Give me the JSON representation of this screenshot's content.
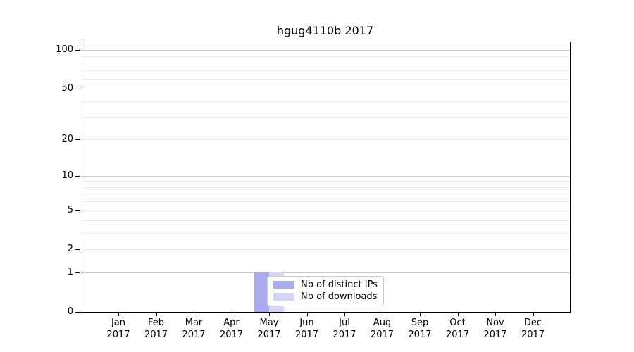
{
  "chart_data": {
    "type": "bar",
    "title": "hgug4110b 2017",
    "categories": [
      "Jan 2017",
      "Feb 2017",
      "Mar 2017",
      "Apr 2017",
      "May 2017",
      "Jun 2017",
      "Jul 2017",
      "Aug 2017",
      "Sep 2017",
      "Oct 2017",
      "Nov 2017",
      "Dec 2017"
    ],
    "series": [
      {
        "name": "Nb of distinct IPs",
        "color": "#aaaaee",
        "values": [
          0,
          0,
          0,
          0,
          1,
          0,
          0,
          0,
          0,
          0,
          0,
          0
        ]
      },
      {
        "name": "Nb of downloads",
        "color": "#d6d6f4",
        "values": [
          0,
          0,
          0,
          0,
          1,
          0,
          0,
          0,
          0,
          0,
          0,
          0
        ]
      }
    ],
    "xlabel": "",
    "ylabel": "",
    "yscale": "log1p",
    "ylim": [
      0,
      115
    ],
    "yticks": [
      0,
      1,
      2,
      5,
      10,
      20,
      50,
      100
    ],
    "major_gridlines": [
      1,
      10,
      100
    ],
    "minor_gridlines": [
      2,
      3,
      4,
      5,
      6,
      7,
      8,
      9,
      20,
      30,
      40,
      50,
      60,
      70,
      80,
      90
    ],
    "grid": "horizontal",
    "legend_position": "lower center"
  },
  "colors": {
    "grid_major": "#cccccc",
    "grid_minor": "#ececec",
    "spine": "#000000",
    "background": "#ffffff",
    "legend_border": "#cccccc"
  }
}
